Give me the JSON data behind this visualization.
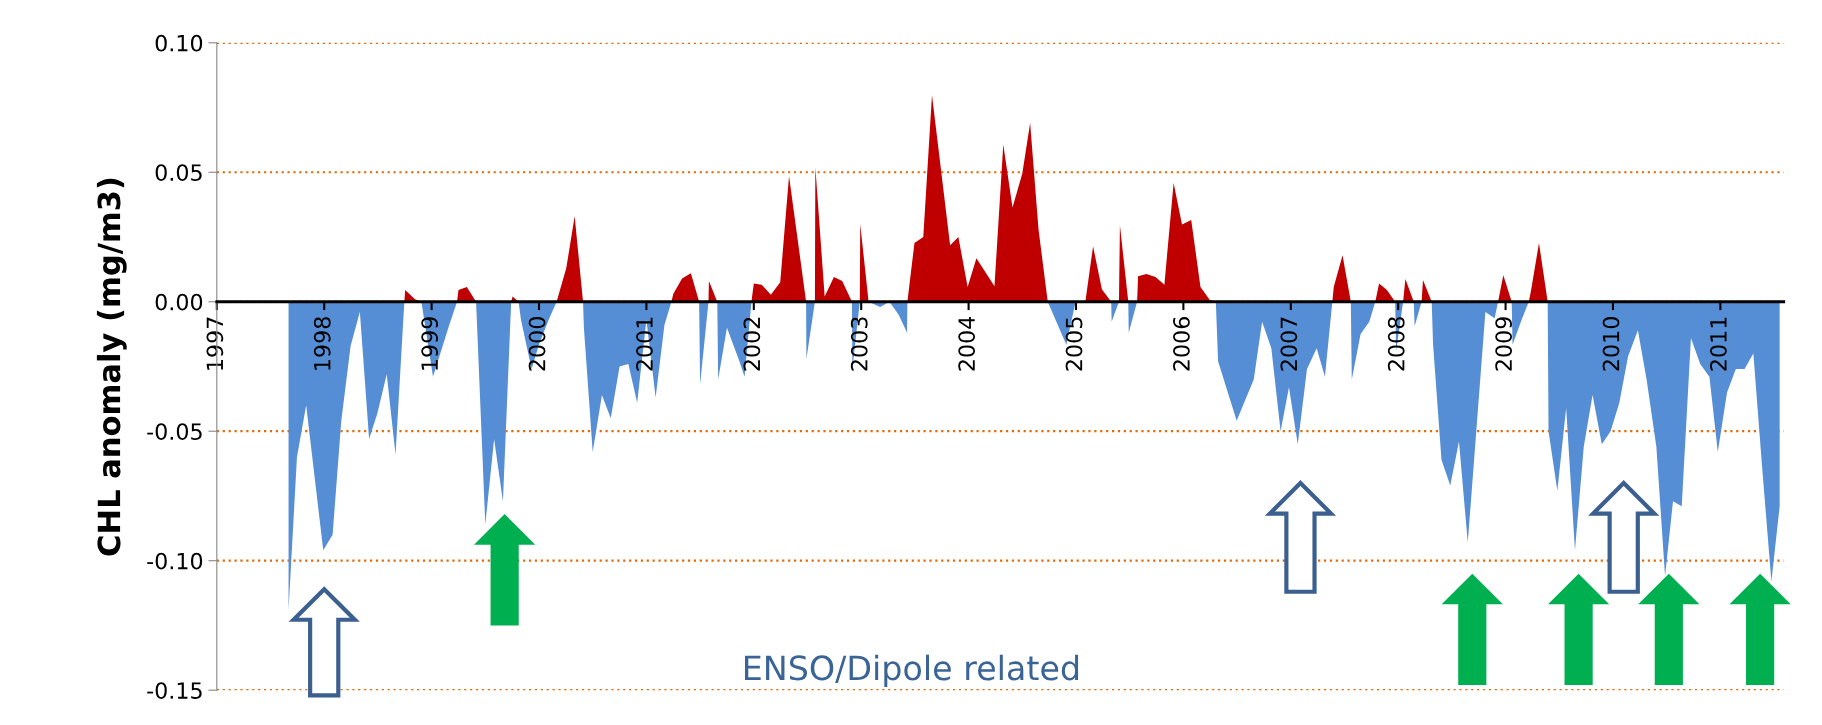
{
  "chart_data": {
    "type": "area",
    "ylabel": "CHL anomaly (mg/m3)",
    "annotations": [
      "ENSO/Dipole related"
    ],
    "xlim": [
      1997,
      2011.59
    ],
    "xticks": [
      1997,
      1998,
      1999,
      2000,
      2001,
      2002,
      2003,
      2004,
      2005,
      2006,
      2007,
      2008,
      2009,
      2010,
      2011
    ],
    "ylim": [
      -0.15,
      0.1
    ],
    "yticks": [
      {
        "value": 0.1,
        "label": "0.10"
      },
      {
        "value": 0.05,
        "label": "0.05"
      },
      {
        "value": 0,
        "label": "0.00"
      },
      {
        "value": -0.05,
        "label": "-0.05"
      },
      {
        "value": -0.1,
        "label": "-0.10"
      },
      {
        "value": -0.15,
        "label": "-0.15"
      }
    ],
    "grid": "y",
    "series": [
      {
        "color": "#c00000",
        "x": [
          1998.746,
          1998.754,
          1998.845,
          1998.905,
          1999.237,
          1999.25,
          1999.328,
          1999.414,
          1999.741,
          1999.754,
          1999.81,
          2000.164,
          2000.254,
          2000.332,
          2000.41,
          2001.233,
          2001.25,
          2001.332,
          2001.414,
          2001.491,
          2001.578,
          2001.582,
          2001.66,
          2001.978,
          2002.0,
          2002.073,
          2002.159,
          2002.246,
          2002.328,
          2002.41,
          2002.487,
          2002.569,
          2002.573,
          2002.66,
          2002.746,
          2002.823,
          2002.914,
          2002.987,
          2002.991,
          2003.069,
          2003.43,
          2003.496,
          2003.578,
          2003.659,
          2003.828,
          2003.905,
          2003.991,
          2004.073,
          2004.241,
          2004.323,
          2004.409,
          2004.5,
          2004.573,
          2004.651,
          2004.737,
          2005.087,
          2005.159,
          2005.241,
          2005.328,
          2005.4,
          2005.409,
          2005.487,
          2005.569,
          2005.578,
          2005.655,
          2005.741,
          2005.823,
          2005.909,
          2005.987,
          2006.073,
          2006.159,
          2006.246,
          2006.302,
          2007.387,
          2007.4,
          2007.482,
          2007.559,
          2007.787,
          2007.822,
          2007.895,
          2007.972,
          2008.046,
          2008.067,
          2008.145,
          2008.218,
          2008.231,
          2008.312,
          2008.93,
          2008.979,
          2009.057,
          2009.216,
          2009.237,
          2009.311,
          2009.392
        ],
        "values": [
          0,
          0.0045,
          0.001,
          0,
          0,
          0.0045,
          0.0057,
          0,
          0,
          0.002,
          0,
          0,
          0.013,
          0.033,
          0,
          0,
          0.003,
          0.009,
          0.011,
          0,
          0,
          0.008,
          0,
          0,
          0.007,
          0.0066,
          0.0027,
          0.0075,
          0.0486,
          0.0236,
          0,
          0,
          0.052,
          0.002,
          0.0096,
          0.008,
          0,
          0,
          0.03,
          0,
          0,
          0.0227,
          0.025,
          0.0798,
          0.0218,
          0.025,
          0.0057,
          0.0168,
          0.006,
          0.0607,
          0.0364,
          0.0495,
          0.069,
          0.028,
          0,
          0,
          0.0214,
          0.0048,
          0,
          0,
          0.0295,
          0,
          0,
          0.0098,
          0.0107,
          0.0096,
          0.0066,
          0.0459,
          0.0298,
          0.0316,
          0.0057,
          0.0007,
          0,
          0,
          0.0057,
          0.018,
          0,
          0,
          0.007,
          0.0045,
          0,
          0,
          0.0088,
          0,
          0,
          0.0084,
          0,
          0,
          0.0102,
          0,
          0,
          0.0043,
          0.0227,
          0
        ]
      },
      {
        "color": "#558ed5",
        "x": [
          1997.668,
          1997.746,
          1997.832,
          1997.991,
          1998.078,
          1998.159,
          1998.246,
          1998.332,
          1998.418,
          1998.496,
          1998.582,
          1998.664,
          1998.746,
          1998.905,
          1999.013,
          1999.164,
          1999.237,
          1999.414,
          1999.5,
          1999.582,
          1999.664,
          1999.741,
          1999.81,
          1999.832,
          1999.931,
          2000.004,
          2000.09,
          2000.164,
          2000.41,
          2000.418,
          2000.5,
          2000.586,
          2000.668,
          2000.75,
          2000.832,
          2000.914,
          2001.0,
          2001.086,
          2001.168,
          2001.233,
          2001.491,
          2001.5,
          2001.578,
          2001.66,
          2001.668,
          2001.75,
          2001.866,
          2001.914,
          2001.978,
          2002.487,
          2002.49,
          2002.569,
          2002.914,
          2002.918,
          2002.987,
          2003.069,
          2003.177,
          2003.263,
          2003.349,
          2003.427,
          2003.43,
          2004.737,
          2004.91,
          2004.996,
          2005.087,
          2005.328,
          2005.332,
          2005.4,
          2005.487,
          2005.491,
          2005.569,
          2006.302,
          2006.323,
          2006.496,
          2006.655,
          2006.733,
          2006.819,
          2006.905,
          2006.983,
          2007.065,
          2007.151,
          2007.241,
          2007.318,
          2007.387,
          2007.559,
          2007.568,
          2007.65,
          2007.731,
          2007.787,
          2007.972,
          2007.981,
          2008.046,
          2008.145,
          2008.153,
          2008.218,
          2008.312,
          2008.325,
          2008.403,
          2008.485,
          2008.566,
          2008.648,
          2008.812,
          2008.898,
          2008.93,
          2009.057,
          2009.065,
          2009.151,
          2009.216,
          2009.392,
          2009.4,
          2009.482,
          2009.564,
          2009.646,
          2009.728,
          2009.81,
          2009.896,
          2009.978,
          2010.059,
          2010.141,
          2010.232,
          2010.313,
          2010.404,
          2010.485,
          2010.559,
          2010.64,
          2010.726,
          2010.812,
          2010.898,
          2010.976,
          2011.062,
          2011.144,
          2011.225,
          2011.307,
          2011.389,
          2011.475,
          2011.552
        ],
        "values": [
          -0.119,
          -0.06,
          -0.04,
          -0.096,
          -0.09,
          -0.046,
          -0.017,
          -0.004,
          -0.053,
          -0.043,
          -0.028,
          -0.059,
          0,
          0,
          -0.029,
          -0.009,
          0,
          0,
          -0.086,
          -0.053,
          -0.077,
          0,
          0,
          -0.007,
          -0.026,
          -0.016,
          -0.007,
          0,
          0,
          -0.01,
          -0.058,
          -0.036,
          -0.045,
          -0.025,
          -0.024,
          -0.039,
          -0.007,
          -0.037,
          -0.009,
          0,
          0,
          -0.032,
          0,
          0,
          -0.03,
          -0.01,
          -0.023,
          -0.029,
          0,
          0,
          -0.022,
          0,
          0,
          -0.026,
          0,
          0,
          -0.002,
          0,
          -0.005,
          -0.012,
          0,
          0,
          -0.0166,
          0,
          0,
          0,
          -0.0077,
          0,
          0,
          -0.012,
          0,
          0,
          -0.023,
          -0.046,
          -0.03,
          -0.0077,
          -0.018,
          -0.05,
          -0.033,
          -0.055,
          -0.026,
          -0.018,
          -0.029,
          0,
          0,
          -0.03,
          -0.0125,
          -0.0077,
          0,
          0,
          -0.019,
          0,
          0,
          -0.0095,
          0,
          0,
          -0.0166,
          -0.061,
          -0.071,
          -0.054,
          -0.093,
          -0.004,
          -0.0064,
          0,
          0,
          -0.0166,
          -0.0068,
          0,
          0,
          -0.05,
          -0.073,
          -0.041,
          -0.096,
          -0.056,
          -0.036,
          -0.055,
          -0.05,
          -0.039,
          -0.021,
          -0.011,
          -0.03,
          -0.056,
          -0.106,
          -0.077,
          -0.079,
          -0.014,
          -0.024,
          -0.029,
          -0.058,
          -0.035,
          -0.026,
          -0.026,
          -0.02,
          -0.064,
          -0.108,
          -0.079
        ]
      }
    ]
  }
}
